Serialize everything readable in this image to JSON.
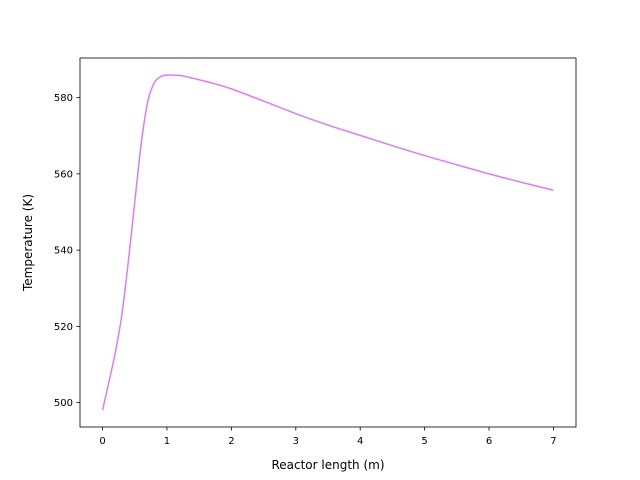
{
  "chart_data": {
    "type": "line",
    "title": "",
    "xlabel": "Reactor length (m)",
    "ylabel": "Temperature (K)",
    "xlim": [
      -0.35,
      7.35
    ],
    "ylim": [
      493.6,
      590.4
    ],
    "xticks": [
      0,
      1,
      2,
      3,
      4,
      5,
      6,
      7
    ],
    "yticks": [
      500,
      520,
      540,
      560,
      580
    ],
    "grid": false,
    "legend": "none",
    "series": [
      {
        "color": "#DD7BFB",
        "x": [
          0,
          0.1,
          0.2,
          0.3,
          0.4,
          0.5,
          0.6,
          0.7,
          0.8,
          0.9,
          1.0,
          1.1,
          1.2,
          1.3,
          1.4,
          1.5,
          1.75,
          2.0,
          2.5,
          3.0,
          3.5,
          4.0,
          4.5,
          5.0,
          5.5,
          6.0,
          6.5,
          7.0
        ],
        "y": [
          498.0,
          505.5,
          513.3,
          523.1,
          537.0,
          552.6,
          567.9,
          578.8,
          583.8,
          585.5,
          585.9,
          585.9,
          585.8,
          585.5,
          585.1,
          584.7,
          583.6,
          582.3,
          579.1,
          575.8,
          572.8,
          570.1,
          567.4,
          564.8,
          562.4,
          560.0,
          557.8,
          555.7
        ]
      }
    ]
  }
}
